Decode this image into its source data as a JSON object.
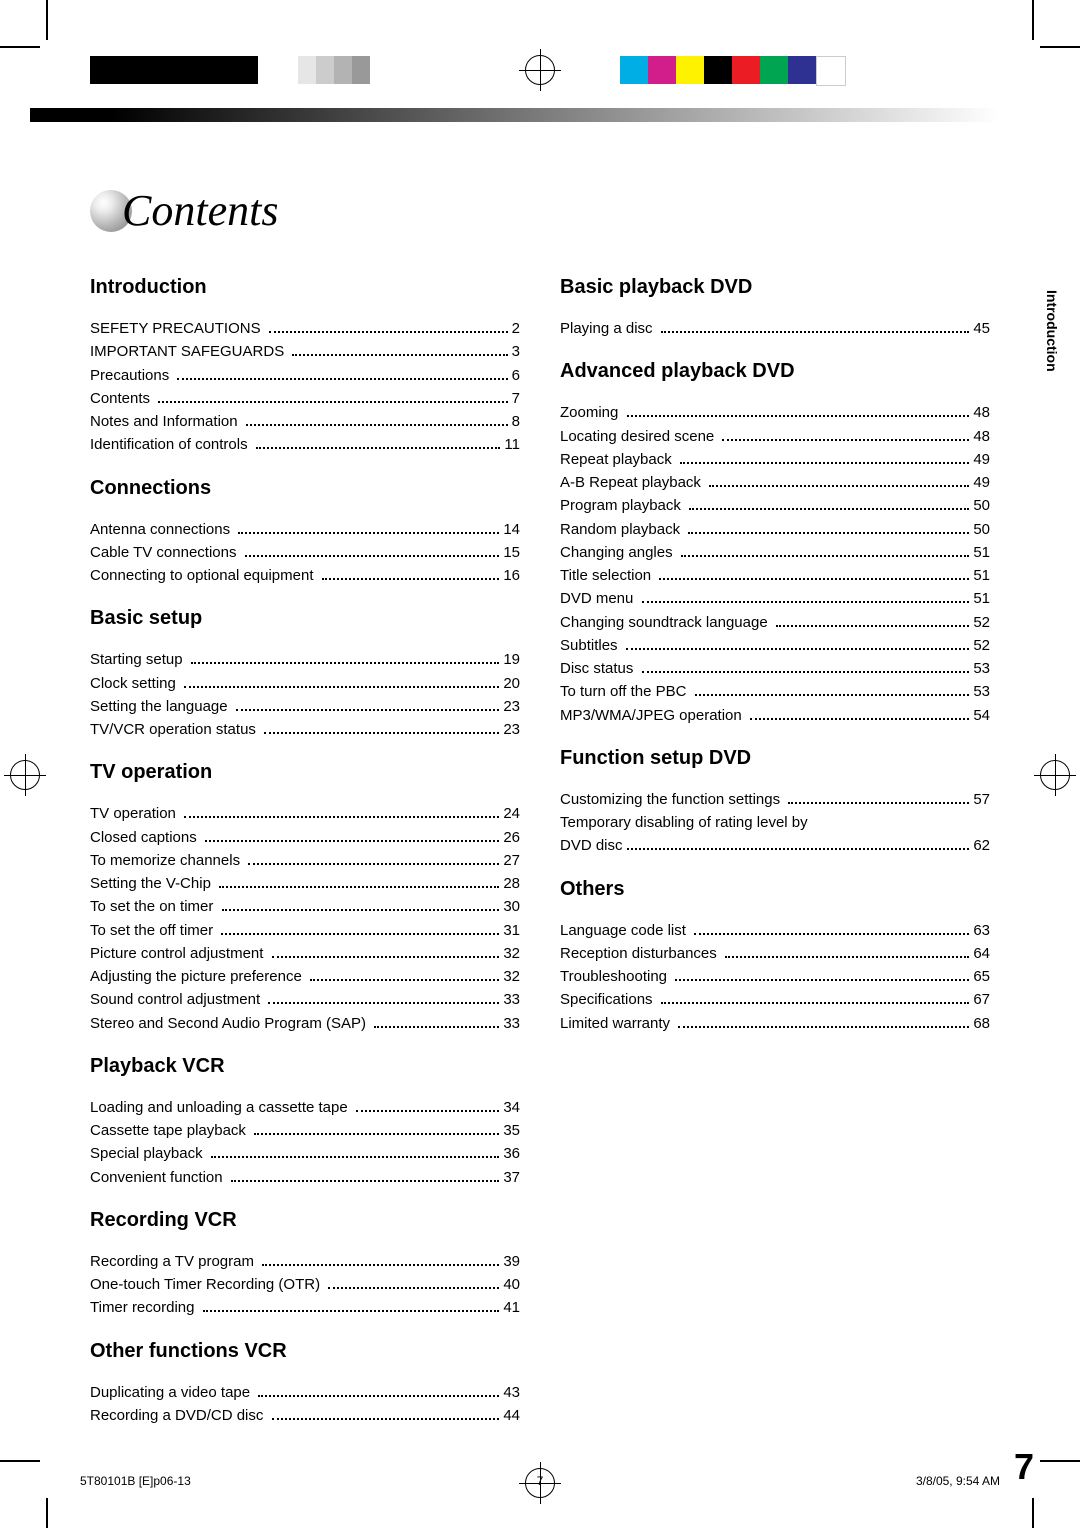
{
  "title": "Contents",
  "side_tab": "Introduction",
  "page_number": "7",
  "footer": {
    "left": "5T80101B [E]p06-13",
    "mid": "7",
    "right": "3/8/05, 9:54 AM"
  },
  "color_swatches_left": [
    "#000000",
    "#000000",
    "#000000",
    "#000000",
    "#000000",
    "#000000"
  ],
  "gray_steps": [
    "#ffffff",
    "#e6e6e6",
    "#cccccc",
    "#b3b3b3",
    "#999999"
  ],
  "color_swatches_right": [
    "#00aee6",
    "#d11e8b",
    "#fff200",
    "#000000",
    "#ec1c24",
    "#00a551",
    "#2e3192",
    "#ffffff"
  ],
  "left_column": [
    {
      "heading": "Introduction",
      "items": [
        {
          "label": "SEFETY PRECAUTIONS",
          "page": "2"
        },
        {
          "label": "IMPORTANT SAFEGUARDS",
          "page": "3"
        },
        {
          "label": "Precautions",
          "page": "6"
        },
        {
          "label": "Contents",
          "page": "7"
        },
        {
          "label": "Notes and Information",
          "page": "8"
        },
        {
          "label": "Identification of controls",
          "page": "11"
        }
      ]
    },
    {
      "heading": "Connections",
      "items": [
        {
          "label": "Antenna connections",
          "page": "14"
        },
        {
          "label": "Cable TV connections",
          "page": "15"
        },
        {
          "label": "Connecting to optional equipment",
          "page": "16"
        }
      ]
    },
    {
      "heading": "Basic setup",
      "items": [
        {
          "label": "Starting setup",
          "page": "19"
        },
        {
          "label": "Clock setting",
          "page": "20"
        },
        {
          "label": "Setting the language",
          "page": "23"
        },
        {
          "label": "TV/VCR operation status",
          "page": "23"
        }
      ]
    },
    {
      "heading": "TV operation",
      "items": [
        {
          "label": "TV operation",
          "page": "24"
        },
        {
          "label": "Closed captions",
          "page": "26"
        },
        {
          "label": "To memorize channels",
          "page": "27"
        },
        {
          "label": "Setting the V-Chip",
          "page": "28"
        },
        {
          "label": "To set the on timer",
          "page": "30"
        },
        {
          "label": "To set the off timer",
          "page": "31"
        },
        {
          "label": "Picture control adjustment",
          "page": "32"
        },
        {
          "label": "Adjusting the picture preference",
          "page": "32"
        },
        {
          "label": "Sound control adjustment",
          "page": "33"
        },
        {
          "label": "Stereo and Second Audio Program (SAP)",
          "page": "33"
        }
      ]
    },
    {
      "heading": "Playback VCR",
      "items": [
        {
          "label": "Loading and unloading a cassette tape",
          "page": "34"
        },
        {
          "label": "Cassette tape playback",
          "page": "35"
        },
        {
          "label": "Special playback",
          "page": "36"
        },
        {
          "label": "Convenient function",
          "page": "37"
        }
      ]
    },
    {
      "heading": "Recording VCR",
      "items": [
        {
          "label": "Recording a TV program",
          "page": "39"
        },
        {
          "label": "One-touch Timer Recording (OTR)",
          "page": "40"
        },
        {
          "label": "Timer recording",
          "page": "41"
        }
      ]
    },
    {
      "heading": "Other functions VCR",
      "items": [
        {
          "label": "Duplicating a video tape",
          "page": "43"
        },
        {
          "label": "Recording a DVD/CD disc",
          "page": "44"
        }
      ]
    }
  ],
  "right_column": [
    {
      "heading": "Basic playback DVD",
      "items": [
        {
          "label": "Playing a disc",
          "page": "45"
        }
      ]
    },
    {
      "heading": "Advanced playback DVD",
      "items": [
        {
          "label": "Zooming",
          "page": "48"
        },
        {
          "label": "Locating desired scene",
          "page": "48"
        },
        {
          "label": "Repeat playback",
          "page": "49"
        },
        {
          "label": "A-B Repeat playback",
          "page": "49"
        },
        {
          "label": "Program playback",
          "page": "50"
        },
        {
          "label": "Random playback",
          "page": "50"
        },
        {
          "label": "Changing angles",
          "page": "51"
        },
        {
          "label": "Title selection",
          "page": "51"
        },
        {
          "label": "DVD menu",
          "page": "51"
        },
        {
          "label": "Changing soundtrack language",
          "page": "52"
        },
        {
          "label": "Subtitles",
          "page": "52"
        },
        {
          "label": "Disc status",
          "page": "53"
        },
        {
          "label": "To turn off the PBC",
          "page": "53"
        },
        {
          "label": "MP3/WMA/JPEG operation",
          "page": "54"
        }
      ]
    },
    {
      "heading": "Function setup DVD",
      "items": [
        {
          "label": "Customizing the function settings",
          "page": "57"
        },
        {
          "label_lines": [
            "Temporary disabling of rating level by",
            "DVD disc"
          ],
          "page": "62"
        }
      ]
    },
    {
      "heading": "Others",
      "items": [
        {
          "label": "Language code list",
          "page": "63"
        },
        {
          "label": "Reception disturbances",
          "page": "64"
        },
        {
          "label": "Troubleshooting",
          "page": "65"
        },
        {
          "label": "Specifications",
          "page": "67"
        },
        {
          "label": "Limited warranty",
          "page": "68"
        }
      ]
    }
  ]
}
